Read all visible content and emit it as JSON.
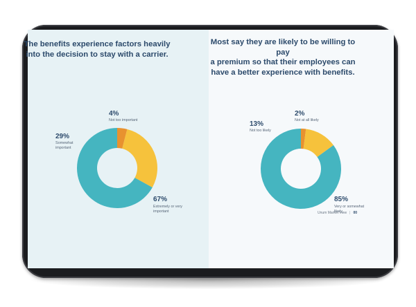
{
  "chart_data": [
    {
      "type": "pie",
      "title": "The benefits experience factors heavily\ninto the decision to stay with a carrier.",
      "slices": [
        {
          "label": "Extremely or very\nimportant",
          "value": 67,
          "pct_label": "67%",
          "color": "#45b5c0"
        },
        {
          "label": "Somewhat\nimportant",
          "value": 29,
          "pct_label": "29%",
          "color": "#f6c23c"
        },
        {
          "label": "Not too important",
          "value": 4,
          "pct_label": "4%",
          "color": "#e8922f"
        }
      ]
    },
    {
      "type": "pie",
      "title": "Most say they are likely to be willing to pay\na premium so that their employees can\nhave a better experience with benefits.",
      "slices": [
        {
          "label": "Very or somewhat\nlikely",
          "value": 85,
          "pct_label": "85%",
          "color": "#45b5c0"
        },
        {
          "label": "Not too likely",
          "value": 13,
          "pct_label": "13%",
          "color": "#f6c23c"
        },
        {
          "label": "Not at all likely",
          "value": 2,
          "pct_label": "2%",
          "color": "#e8922f"
        }
      ]
    }
  ],
  "footer": {
    "source": "Unum Market View",
    "page": "00"
  }
}
